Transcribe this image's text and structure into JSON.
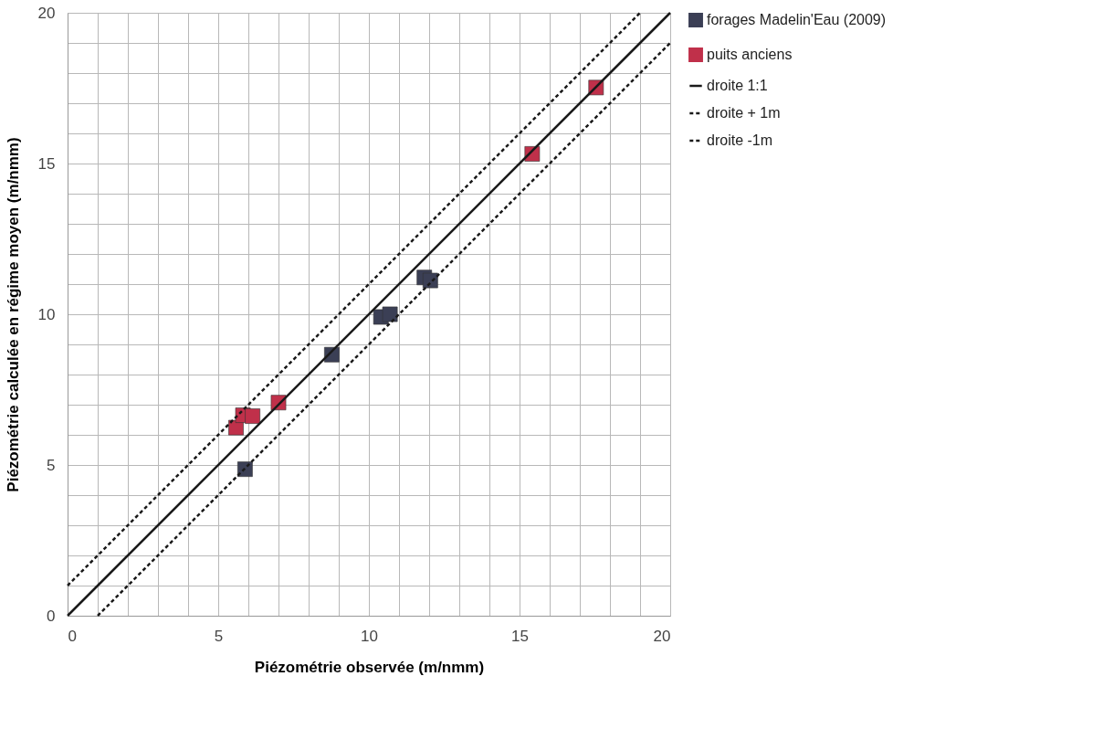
{
  "chart_data": {
    "type": "scatter",
    "xlabel": "Piézométrie observée (m/nmm)",
    "ylabel": "Piézométrie calculée en régime moyen (m/nmm)",
    "series": [
      {
        "name": "forages Madelin'Eau (2009)",
        "type": "scatter",
        "marker": "square",
        "color": "#3b3f55",
        "x": [
          5.89,
          8.77,
          10.4,
          10.7,
          11.84,
          12.04
        ],
        "values": [
          4.86,
          8.66,
          9.91,
          10.0,
          11.22,
          11.12
        ]
      },
      {
        "name": "puits anciens",
        "type": "scatter",
        "marker": "square",
        "color": "#c0304a",
        "x": [
          5.59,
          5.82,
          6.14,
          7.0,
          15.42,
          17.54
        ],
        "values": [
          6.24,
          6.65,
          6.62,
          7.07,
          15.32,
          17.52
        ]
      },
      {
        "name": "droite 1:1",
        "type": "line",
        "line_style": "solid",
        "color": "#1a1a1a",
        "x": [
          0,
          20
        ],
        "values": [
          0,
          20
        ]
      },
      {
        "name": "droite + 1m",
        "type": "line",
        "line_style": "dashed",
        "color": "#1a1a1a",
        "x": [
          0,
          19
        ],
        "values": [
          1,
          20
        ]
      },
      {
        "name": "droite -1m",
        "type": "line",
        "line_style": "dashed",
        "color": "#1a1a1a",
        "x": [
          1,
          20
        ],
        "values": [
          0,
          19
        ]
      }
    ],
    "xlim": [
      0,
      20
    ],
    "ylim": [
      0,
      20
    ],
    "xticks": [
      0,
      {
        "value": 1,
        "label": null
      },
      {
        "value": 2,
        "label": null
      },
      {
        "value": 3,
        "label": null
      },
      {
        "value": 4,
        "label": null
      },
      5,
      {
        "value": 6,
        "label": null
      },
      {
        "value": 7,
        "label": null
      },
      {
        "value": 8,
        "label": null
      },
      {
        "value": 9,
        "label": null
      },
      10,
      {
        "value": 11,
        "label": null
      },
      {
        "value": 12,
        "label": null
      },
      {
        "value": 13,
        "label": null
      },
      {
        "value": 14,
        "label": null
      },
      15,
      {
        "value": 16,
        "label": null
      },
      {
        "value": 17,
        "label": null
      },
      {
        "value": 18,
        "label": null
      },
      {
        "value": 19,
        "label": null
      },
      20
    ],
    "yticks": [
      0,
      {
        "value": 1,
        "label": null
      },
      {
        "value": 2,
        "label": null
      },
      {
        "value": 3,
        "label": null
      },
      {
        "value": 4,
        "label": null
      },
      5,
      {
        "value": 6,
        "label": null
      },
      {
        "value": 7,
        "label": null
      },
      {
        "value": 8,
        "label": null
      },
      {
        "value": 9,
        "label": null
      },
      10,
      {
        "value": 11,
        "label": null
      },
      {
        "value": 12,
        "label": null
      },
      {
        "value": 13,
        "label": null
      },
      {
        "value": 14,
        "label": null
      },
      15,
      {
        "value": 16,
        "label": null
      },
      {
        "value": 17,
        "label": null
      },
      {
        "value": 18,
        "label": null
      },
      {
        "value": 19,
        "label": null
      },
      20
    ],
    "grid": true,
    "legend": "right"
  }
}
